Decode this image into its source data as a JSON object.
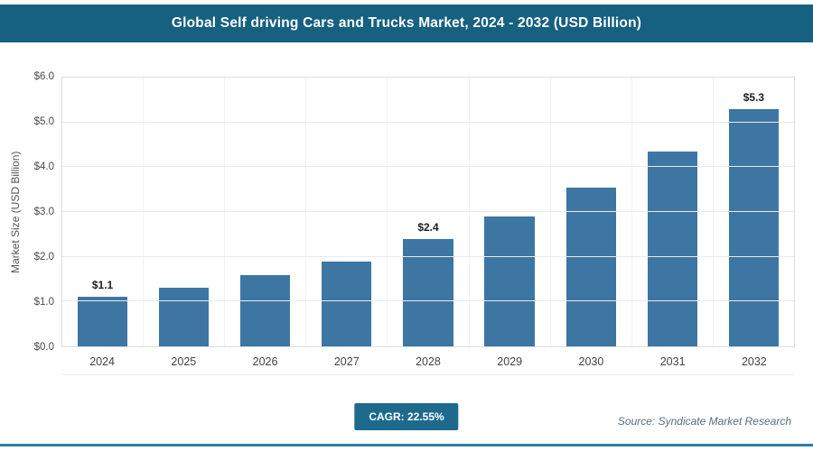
{
  "chart_data": {
    "type": "bar",
    "title": "Global Self driving Cars and Trucks Market, 2024 - 2032 (USD Billion)",
    "categories": [
      "2024",
      "2025",
      "2026",
      "2027",
      "2028",
      "2029",
      "2030",
      "2031",
      "2032"
    ],
    "values": [
      1.1,
      1.3,
      1.6,
      1.9,
      2.4,
      2.9,
      3.55,
      4.35,
      5.3
    ],
    "data_labels": [
      "$1.1",
      "",
      "",
      "",
      "$2.4",
      "",
      "",
      "",
      "$5.3"
    ],
    "xlabel": "",
    "ylabel": "Market Size (USD Billion)",
    "ylim": [
      0,
      6
    ],
    "yticks": [
      "$0.0",
      "$1.0",
      "$2.0",
      "$3.0",
      "$4.0",
      "$5.0",
      "$6.0"
    ],
    "grid": true,
    "legend": "none",
    "bar_color": "#3d76a2"
  },
  "footer": {
    "cagr_label": "CAGR: 22.55%",
    "source": "Source: Syndicate Market Research"
  },
  "colors": {
    "header_bg": "#166080",
    "bar": "#3d76a2",
    "badge_bg": "#1d6a8d",
    "accent_line": "#2b80a6"
  }
}
